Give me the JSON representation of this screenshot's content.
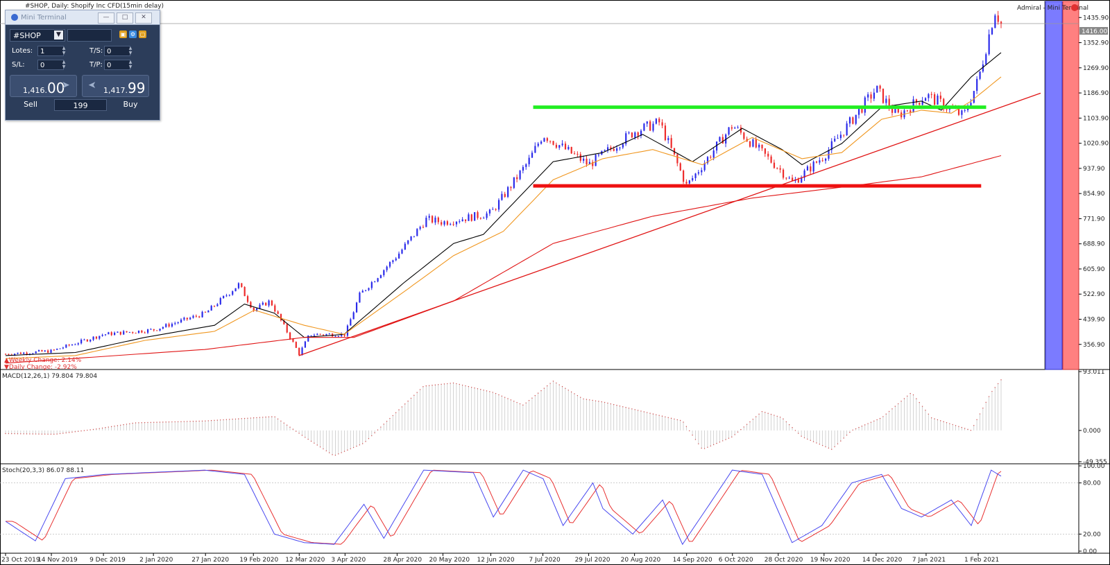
{
  "header": {
    "chart_title": "#SHOP, Daily:  Shopify Inc CFD(15min delay)",
    "expert_label": "Admiral - Mini Terminal",
    "weekly_change": "▲Weekly Change: 2.14%",
    "daily_change": "▼Daily Change: -2.92%"
  },
  "colors": {
    "bull": "#2b2bea",
    "bear": "#ee2b2b",
    "ma_fast": "#000000",
    "ma_mid": "#f0961e",
    "ma_slow": "#e01414",
    "resistance": "#22ee22",
    "support": "#ee1111",
    "macd": "#d05050",
    "stoch_main": "#4848f0",
    "stoch_signal": "#e83030"
  },
  "mini_terminal": {
    "title": "Mini Terminal",
    "symbol": "#SHOP",
    "lots_label": "Lotes:",
    "lots_value": "1",
    "ts_label": "T/S:",
    "ts_value": "0",
    "sl_label": "S/L:",
    "sl_value": "0",
    "tp_label": "T/P:",
    "tp_value": "0",
    "sell_price_small": "1,416.",
    "sell_price_big": "00",
    "buy_price_small": "1,417.",
    "buy_price_big": "99",
    "sell_label": "Sell",
    "buy_label": "Buy",
    "volume_value": "199"
  },
  "chart_data": [
    {
      "type": "candlestick",
      "title": "#SHOP, Daily:  Shopify Inc CFD(15min delay)",
      "x_tick_labels": [
        "23 Oct 2019",
        "14 Nov 2019",
        "9 Dec 2019",
        "2 Jan 2020",
        "27 Jan 2020",
        "19 Feb 2020",
        "12 Mar 2020",
        "3 Apr 2020",
        "28 Apr 2020",
        "20 May 2020",
        "12 Jun 2020",
        "7 Jul 2020",
        "29 Jul 2020",
        "20 Aug 2020",
        "14 Sep 2020",
        "6 Oct 2020",
        "28 Oct 2020",
        "19 Nov 2020",
        "14 Dec 2020",
        "7 Jan 2021",
        "1 Feb 2021"
      ],
      "y_tick_labels": [
        "1435.90",
        "1352.90",
        "1269.90",
        "1186.90",
        "1103.90",
        "1020.90",
        "937.90",
        "854.90",
        "771.90",
        "688.90",
        "605.90",
        "522.90",
        "439.90",
        "356.90"
      ],
      "ylim": [
        290,
        1480
      ],
      "current_price_label": "1416.00",
      "current_price": 1416.0,
      "close_keypoints": [
        {
          "date": "23 Oct 2019",
          "close": 325
        },
        {
          "date": "14 Nov 2019",
          "close": 335
        },
        {
          "date": "9 Dec 2019",
          "close": 390
        },
        {
          "date": "2 Jan 2020",
          "close": 405
        },
        {
          "date": "27 Jan 2020",
          "close": 460
        },
        {
          "date": "12 Feb 2020",
          "close": 555
        },
        {
          "date": "19 Feb 2020",
          "close": 470
        },
        {
          "date": "27 Feb 2020",
          "close": 500
        },
        {
          "date": "12 Mar 2020",
          "close": 325
        },
        {
          "date": "17 Mar 2020",
          "close": 390
        },
        {
          "date": "3 Apr 2020",
          "close": 390
        },
        {
          "date": "10 Apr 2020",
          "close": 520
        },
        {
          "date": "28 Apr 2020",
          "close": 650
        },
        {
          "date": "12 May 2020",
          "close": 770
        },
        {
          "date": "20 May 2020",
          "close": 760
        },
        {
          "date": "12 Jun 2020",
          "close": 790
        },
        {
          "date": "30 Jun 2020",
          "close": 960
        },
        {
          "date": "7 Jul 2020",
          "close": 1050
        },
        {
          "date": "29 Jul 2020",
          "close": 950
        },
        {
          "date": "20 Aug 2020",
          "close": 1060
        },
        {
          "date": "1 Sep 2020",
          "close": 1090
        },
        {
          "date": "14 Sep 2020",
          "close": 880
        },
        {
          "date": "6 Oct 2020",
          "close": 1080
        },
        {
          "date": "28 Oct 2020",
          "close": 940
        },
        {
          "date": "4 Nov 2020",
          "close": 890
        },
        {
          "date": "19 Nov 2020",
          "close": 980
        },
        {
          "date": "14 Dec 2020",
          "close": 1200
        },
        {
          "date": "24 Dec 2020",
          "close": 1110
        },
        {
          "date": "7 Jan 2021",
          "close": 1180
        },
        {
          "date": "25 Jan 2021",
          "close": 1110
        },
        {
          "date": "1 Feb 2021",
          "close": 1230
        },
        {
          "date": "9 Feb 2021",
          "close": 1460
        },
        {
          "date": "12 Feb 2021",
          "close": 1416
        }
      ],
      "moving_averages": [
        {
          "name": "fast",
          "color": "#000000",
          "points": [
            [
              0,
              320
            ],
            [
              0.07,
              330
            ],
            [
              0.14,
              380
            ],
            [
              0.21,
              420
            ],
            [
              0.24,
              490
            ],
            [
              0.27,
              460
            ],
            [
              0.3,
              380
            ],
            [
              0.34,
              390
            ],
            [
              0.4,
              560
            ],
            [
              0.45,
              690
            ],
            [
              0.48,
              720
            ],
            [
              0.55,
              960
            ],
            [
              0.6,
              990
            ],
            [
              0.64,
              1050
            ],
            [
              0.69,
              960
            ],
            [
              0.74,
              1070
            ],
            [
              0.78,
              1000
            ],
            [
              0.8,
              950
            ],
            [
              0.84,
              1020
            ],
            [
              0.88,
              1140
            ],
            [
              0.92,
              1160
            ],
            [
              0.94,
              1130
            ],
            [
              0.97,
              1240
            ],
            [
              1,
              1320
            ]
          ]
        },
        {
          "name": "mid",
          "color": "#f0961e",
          "points": [
            [
              0,
              310
            ],
            [
              0.07,
              320
            ],
            [
              0.14,
              370
            ],
            [
              0.21,
              400
            ],
            [
              0.25,
              470
            ],
            [
              0.3,
              420
            ],
            [
              0.34,
              390
            ],
            [
              0.4,
              530
            ],
            [
              0.45,
              650
            ],
            [
              0.5,
              730
            ],
            [
              0.55,
              900
            ],
            [
              0.6,
              970
            ],
            [
              0.65,
              1000
            ],
            [
              0.7,
              950
            ],
            [
              0.75,
              1040
            ],
            [
              0.8,
              970
            ],
            [
              0.84,
              990
            ],
            [
              0.88,
              1100
            ],
            [
              0.92,
              1130
            ],
            [
              0.95,
              1120
            ],
            [
              0.97,
              1160
            ],
            [
              1,
              1240
            ]
          ]
        },
        {
          "name": "slow",
          "color": "#e01414",
          "points": [
            [
              0,
              295
            ],
            [
              0.2,
              340
            ],
            [
              0.3,
              380
            ],
            [
              0.35,
              380
            ],
            [
              0.45,
              500
            ],
            [
              0.55,
              690
            ],
            [
              0.65,
              780
            ],
            [
              0.75,
              840
            ],
            [
              0.85,
              880
            ],
            [
              0.92,
              910
            ],
            [
              1,
              980
            ]
          ]
        }
      ],
      "trendline": {
        "color": "#e01414",
        "start": {
          "date": "12 Mar 2020",
          "value": 320
        },
        "end": {
          "date": "12 Feb 2021",
          "value": 1140
        }
      },
      "horizontal_levels": [
        {
          "kind": "resistance",
          "color": "#22ee22",
          "value": 1140
        },
        {
          "kind": "support",
          "color": "#ee1111",
          "value": 880
        }
      ]
    },
    {
      "type": "bar",
      "title": "MACD(12,26,1) 79.804 79.804",
      "y_tick_labels": [
        "93.011",
        "0.000",
        "-49.355"
      ],
      "ylim": [
        -49.355,
        93.011
      ],
      "keypoints": [
        [
          0,
          -5
        ],
        [
          0.05,
          -6
        ],
        [
          0.09,
          2
        ],
        [
          0.13,
          12
        ],
        [
          0.2,
          15
        ],
        [
          0.27,
          22
        ],
        [
          0.3,
          -10
        ],
        [
          0.33,
          -40
        ],
        [
          0.36,
          -20
        ],
        [
          0.38,
          10
        ],
        [
          0.42,
          70
        ],
        [
          0.45,
          75
        ],
        [
          0.49,
          60
        ],
        [
          0.52,
          40
        ],
        [
          0.55,
          78
        ],
        [
          0.58,
          50
        ],
        [
          0.6,
          45
        ],
        [
          0.64,
          30
        ],
        [
          0.68,
          15
        ],
        [
          0.7,
          -30
        ],
        [
          0.73,
          -10
        ],
        [
          0.76,
          30
        ],
        [
          0.78,
          20
        ],
        [
          0.8,
          -10
        ],
        [
          0.83,
          -30
        ],
        [
          0.85,
          0
        ],
        [
          0.88,
          20
        ],
        [
          0.91,
          60
        ],
        [
          0.93,
          20
        ],
        [
          0.96,
          5
        ],
        [
          0.97,
          0
        ],
        [
          0.99,
          60
        ],
        [
          1,
          80
        ]
      ]
    },
    {
      "type": "line",
      "title": "Stoch(20,3,3) 86.07 88.11",
      "y_tick_labels": [
        "100.00",
        "80.00",
        "20.00",
        "0.00"
      ],
      "ylim": [
        0,
        100
      ],
      "keypoints": [
        [
          0,
          35
        ],
        [
          0.03,
          12
        ],
        [
          0.06,
          85
        ],
        [
          0.1,
          90
        ],
        [
          0.2,
          95
        ],
        [
          0.24,
          90
        ],
        [
          0.27,
          20
        ],
        [
          0.3,
          10
        ],
        [
          0.33,
          8
        ],
        [
          0.36,
          55
        ],
        [
          0.38,
          15
        ],
        [
          0.42,
          95
        ],
        [
          0.47,
          92
        ],
        [
          0.49,
          40
        ],
        [
          0.52,
          95
        ],
        [
          0.54,
          85
        ],
        [
          0.56,
          30
        ],
        [
          0.59,
          80
        ],
        [
          0.6,
          50
        ],
        [
          0.63,
          20
        ],
        [
          0.66,
          60
        ],
        [
          0.68,
          8
        ],
        [
          0.71,
          60
        ],
        [
          0.73,
          95
        ],
        [
          0.76,
          90
        ],
        [
          0.79,
          10
        ],
        [
          0.82,
          30
        ],
        [
          0.85,
          80
        ],
        [
          0.88,
          90
        ],
        [
          0.9,
          50
        ],
        [
          0.92,
          40
        ],
        [
          0.95,
          60
        ],
        [
          0.97,
          30
        ],
        [
          0.99,
          95
        ],
        [
          1,
          88
        ]
      ]
    }
  ]
}
